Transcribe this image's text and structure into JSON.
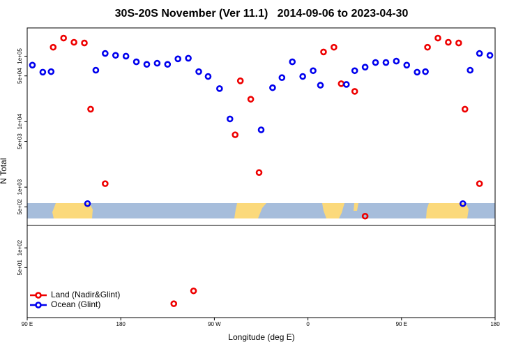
{
  "chart_data": [
    {
      "type": "scatter",
      "title": "30S-20S November (Ver 11.1)   2014-09-06 to 2023-04-30",
      "ylabel": "N Total",
      "log_y": true,
      "legend": "bottomleft",
      "xlim": [
        90,
        540
      ],
      "ylim": [
        260,
        270000
      ],
      "yticks": [
        {
          "value": 500,
          "label": "5e+02"
        },
        {
          "value": 1000,
          "label": "1e+03"
        },
        {
          "value": 5000,
          "label": "5e+03"
        },
        {
          "value": 10000,
          "label": "1e+04"
        },
        {
          "value": 50000,
          "label": "5e+04"
        },
        {
          "value": 100000,
          "label": "1e+05"
        }
      ],
      "series": [
        {
          "name": "Land (Nadir&Glint)",
          "color": "#ee0000",
          "x": [
            115,
            125,
            135,
            145,
            151,
            165,
            290,
            295,
            305,
            313,
            375,
            385,
            392,
            405,
            415,
            475,
            485,
            495,
            505,
            511,
            525
          ],
          "values": [
            137000,
            189000,
            163000,
            159000,
            15500,
            1130,
            6300,
            42000,
            22000,
            1670,
            116000,
            137000,
            38000,
            29000,
            360,
            137000,
            189000,
            163000,
            159000,
            15500,
            1130
          ]
        },
        {
          "name": "Ocean (Glint)",
          "color": "#0000ee",
          "x": [
            95,
            105,
            113,
            148,
            156,
            165,
            175,
            185,
            195,
            205,
            215,
            225,
            235,
            245,
            255,
            264,
            275,
            285,
            315,
            326,
            335,
            345,
            355,
            365,
            372,
            397,
            405,
            415,
            425,
            435,
            445,
            455,
            465,
            473,
            509,
            516,
            525,
            535
          ],
          "values": [
            73000,
            57000,
            58000,
            560,
            61000,
            110000,
            103000,
            100000,
            82000,
            75000,
            78000,
            75000,
            91000,
            93000,
            58000,
            49000,
            32000,
            11000,
            7500,
            33000,
            47000,
            82000,
            49000,
            60000,
            36000,
            37000,
            60000,
            68000,
            80000,
            80000,
            84000,
            73000,
            57000,
            58000,
            560,
            61000,
            110000,
            103000
          ]
        }
      ]
    },
    {
      "type": "scatter",
      "log_y": true,
      "xlabel": "Longitude (deg E)",
      "xlim": [
        90,
        540
      ],
      "ylim": [
        8.6,
        220
      ],
      "xticks": [
        {
          "value": 90,
          "label": "90 E"
        },
        180,
        {
          "value": 270,
          "label": "90 W"
        },
        {
          "value": 360,
          "label": "0"
        },
        {
          "value": 450,
          "label": "90 E"
        },
        {
          "value": 540,
          "label": "180"
        }
      ],
      "yticks": [
        {
          "value": 50,
          "label": "5e+01"
        },
        {
          "value": 100,
          "label": "1e+02"
        }
      ],
      "color": "#ee0000",
      "x": [
        231,
        250
      ],
      "values": [
        14,
        22
      ]
    }
  ]
}
